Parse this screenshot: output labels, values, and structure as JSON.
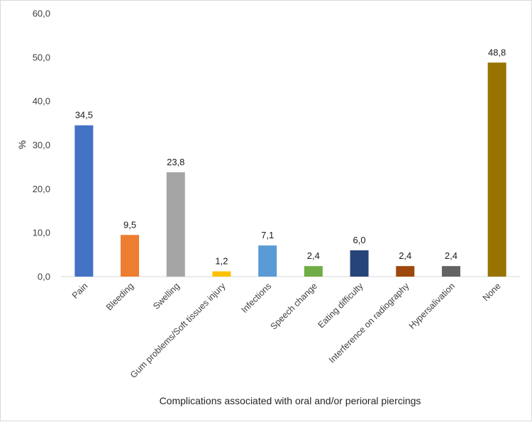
{
  "chart_data": {
    "type": "bar",
    "title": "",
    "xlabel": "Complications associated with oral and/or perioral piercings",
    "ylabel": "%",
    "ylim": [
      0,
      60
    ],
    "yticks": [
      "0,0",
      "10,0",
      "20,0",
      "30,0",
      "40,0",
      "50,0",
      "60,0"
    ],
    "grid": false,
    "categories": [
      "Pain",
      "Bleeding",
      "Swelling",
      "Gum problems/Soft tissues injury",
      "Infections",
      "Speech change",
      "Eating difficulty",
      "Interference on radiography",
      "Hypersalivation",
      "None"
    ],
    "values": [
      34.5,
      9.5,
      23.8,
      1.2,
      7.1,
      2.4,
      6.0,
      2.4,
      2.4,
      48.8
    ],
    "data_labels": [
      "34,5",
      "9,5",
      "23,8",
      "1,2",
      "7,1",
      "2,4",
      "6,0",
      "2,4",
      "2,4",
      "48,8"
    ],
    "colors": [
      "#4472c4",
      "#ed7d31",
      "#a5a5a5",
      "#ffc000",
      "#5b9bd5",
      "#70ad47",
      "#264478",
      "#9e480e",
      "#636363",
      "#997300"
    ]
  }
}
